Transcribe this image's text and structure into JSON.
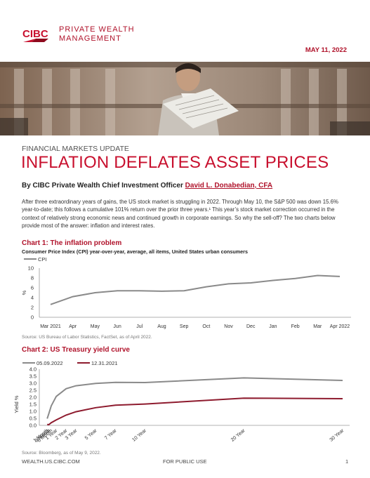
{
  "brand": {
    "logo_text": "CIBC",
    "division_line1": "PRIVATE WEALTH",
    "division_line2": "MANAGEMENT"
  },
  "date": "MAY 11, 2022",
  "kicker": "FINANCIAL MARKETS UPDATE",
  "title": "INFLATION DEFLATES ASSET PRICES",
  "byline": {
    "prefix": "By CIBC Private Wealth Chief Investment Officer",
    "author": "David L. Donabedian, CFA"
  },
  "intro_paragraph": "After three extraordinary years of gains, the US stock market is struggling in 2022. Through May 10, the S&P 500 was down 15.6% year-to-date; this follows a cumulative 101% return over the prior three years.¹ This year’s stock market correction occurred in the context of relatively strong economic news and continued growth in corporate earnings. So why the sell-off? The two charts below provide most of the answer: inflation and interest rates.",
  "chart1": {
    "heading": "Chart 1: The inflation problem",
    "subtitle": "Consumer Price Index (CPI) year-over-year, average, all items, United States urban consumers",
    "source": "Source: US Bureau of Labor Statistics, FactSet, as of April 2022."
  },
  "chart2": {
    "heading": "Chart 2: US Treasury yield curve",
    "source": "Source: Bloomberg, as of May 9, 2022."
  },
  "chart_data": [
    {
      "type": "line",
      "title": "Chart 1: The inflation problem",
      "subtitle": "Consumer Price Index (CPI) year-over-year, average, all items, United States urban consumers",
      "ylabel": "%",
      "ylim": [
        0,
        10
      ],
      "yticks": [
        0,
        2,
        4,
        6,
        8,
        10
      ],
      "categories": [
        "Mar 2021",
        "Apr",
        "May",
        "Jun",
        "Jul",
        "Aug",
        "Sep",
        "Oct",
        "Nov",
        "Dec",
        "Jan",
        "Feb",
        "Mar",
        "Apr 2022"
      ],
      "series": [
        {
          "name": "CPI",
          "color": "#8a8a8a",
          "values": [
            2.6,
            4.2,
            5.0,
            5.4,
            5.4,
            5.3,
            5.4,
            6.2,
            6.8,
            7.0,
            7.5,
            7.9,
            8.5,
            8.3
          ]
        }
      ],
      "legend": "top-left",
      "grid": false
    },
    {
      "type": "line",
      "title": "Chart 2: US Treasury yield curve",
      "ylabel": "Yield %",
      "ylim": [
        0,
        4
      ],
      "yticks": [
        "0.0",
        "0.5",
        "1.0",
        "1.5",
        "2.0",
        "2.5",
        "3.0",
        "3.5",
        "4.0"
      ],
      "x_tick_labels": [
        "1 Month",
        "3 Month",
        "6 Month",
        "1 Year",
        "2 Year",
        "3 Year",
        "5 Year",
        "7 Year",
        "10 Year",
        "20 Year",
        "30 Year"
      ],
      "x_months": [
        1,
        3,
        6,
        12,
        24,
        36,
        60,
        84,
        120,
        240,
        360
      ],
      "series": [
        {
          "name": "05.09.2022",
          "color": "#8a8a8a",
          "values": [
            0.48,
            0.83,
            1.39,
            2.06,
            2.61,
            2.82,
            2.99,
            3.06,
            3.05,
            3.38,
            3.2
          ]
        },
        {
          "name": "12.31.2021",
          "color": "#8e1b2e",
          "values": [
            0.06,
            0.05,
            0.19,
            0.39,
            0.73,
            0.97,
            1.26,
            1.44,
            1.52,
            1.94,
            1.9
          ]
        }
      ],
      "legend": "top-left",
      "grid": false
    }
  ],
  "footer": {
    "url": "WEALTH.US.CIBC.COM",
    "classification": "FOR PUBLIC USE",
    "page_number": "1"
  }
}
